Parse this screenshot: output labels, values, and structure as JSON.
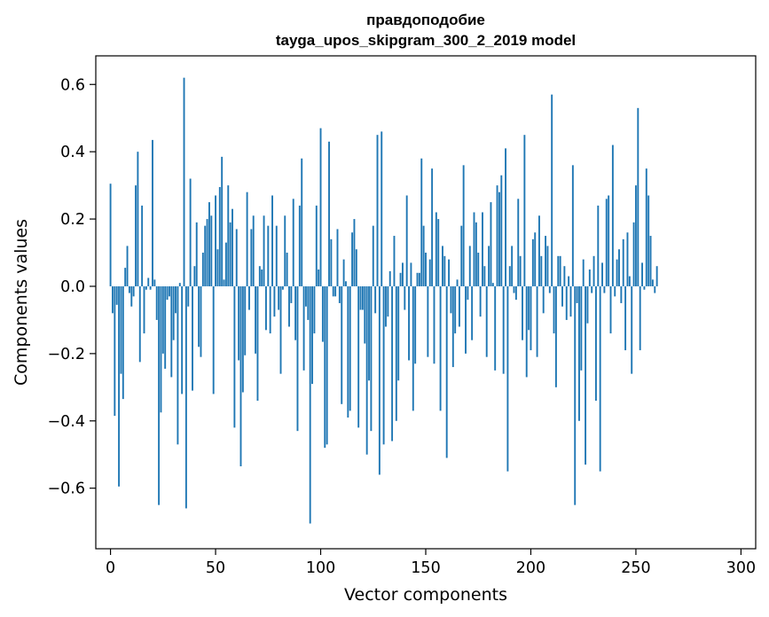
{
  "chart_data": {
    "type": "bar",
    "title": "правдоподобие",
    "subtitle": "tayga_upos_skipgram_300_2_2019 model",
    "xlabel": "Vector components",
    "ylabel": "Components values",
    "xlim": [
      -7,
      307
    ],
    "ylim": [
      -0.78,
      0.685
    ],
    "xticks": [
      0,
      50,
      100,
      150,
      200,
      250,
      300
    ],
    "xtick_labels": [
      "0",
      "50",
      "100",
      "150",
      "200",
      "250",
      "300"
    ],
    "yticks": [
      0.6,
      0.4,
      0.2,
      0.0,
      -0.2,
      -0.4,
      -0.6
    ],
    "ytick_labels": [
      "0.6",
      "0.4",
      "0.2",
      "0.0",
      "−0.2",
      "−0.4",
      "−0.6"
    ],
    "grid": false,
    "bar_color": "#1f77b4",
    "x_start": 0,
    "values": [
      0.305,
      -0.08,
      -0.385,
      -0.055,
      -0.595,
      -0.26,
      -0.335,
      0.055,
      0.12,
      -0.02,
      -0.06,
      -0.03,
      0.3,
      0.4,
      -0.225,
      0.24,
      -0.14,
      -0.01,
      0.025,
      -0.01,
      0.435,
      0.02,
      -0.1,
      -0.65,
      -0.375,
      -0.2,
      -0.245,
      -0.04,
      -0.03,
      -0.27,
      -0.16,
      -0.08,
      -0.47,
      0.01,
      -0.32,
      0.62,
      -0.66,
      -0.06,
      0.32,
      -0.31,
      0.06,
      0.19,
      -0.18,
      -0.21,
      0.1,
      0.18,
      0.2,
      0.25,
      0.21,
      -0.32,
      0.27,
      0.11,
      0.295,
      0.385,
      0.02,
      0.13,
      0.3,
      0.19,
      0.23,
      -0.42,
      0.17,
      -0.22,
      -0.535,
      -0.315,
      -0.205,
      0.28,
      -0.07,
      0.17,
      0.21,
      -0.2,
      -0.34,
      0.06,
      0.05,
      0.21,
      -0.13,
      0.18,
      -0.14,
      0.27,
      -0.09,
      0.18,
      -0.07,
      -0.26,
      -0.01,
      0.21,
      0.1,
      -0.12,
      -0.05,
      0.26,
      -0.16,
      -0.43,
      0.24,
      0.38,
      -0.25,
      -0.06,
      -0.1,
      -0.705,
      -0.29,
      -0.14,
      0.24,
      0.05,
      0.47,
      -0.165,
      -0.48,
      -0.47,
      0.43,
      0.14,
      -0.03,
      -0.03,
      0.17,
      -0.05,
      -0.35,
      0.08,
      0.015,
      -0.39,
      -0.37,
      0.16,
      0.2,
      0.11,
      -0.42,
      -0.07,
      -0.07,
      -0.17,
      -0.5,
      -0.28,
      -0.43,
      0.18,
      -0.08,
      0.45,
      -0.56,
      0.46,
      -0.47,
      -0.12,
      -0.09,
      0.045,
      -0.46,
      0.15,
      -0.4,
      -0.28,
      0.04,
      0.07,
      -0.07,
      0.27,
      -0.22,
      0.07,
      -0.37,
      -0.23,
      0.04,
      0.04,
      0.38,
      0.18,
      0.1,
      -0.21,
      0.08,
      0.35,
      -0.23,
      0.22,
      0.2,
      -0.37,
      0.12,
      0.09,
      -0.51,
      0.08,
      -0.08,
      -0.24,
      -0.14,
      0.02,
      -0.12,
      0.18,
      0.36,
      -0.2,
      -0.04,
      0.12,
      -0.16,
      0.22,
      0.19,
      0.1,
      -0.09,
      0.22,
      0.06,
      -0.21,
      0.12,
      0.25,
      0.01,
      -0.25,
      0.3,
      0.28,
      0.33,
      -0.26,
      0.41,
      -0.55,
      0.06,
      0.12,
      -0.02,
      -0.04,
      0.26,
      0.09,
      -0.16,
      0.45,
      -0.27,
      -0.13,
      -0.19,
      0.14,
      0.16,
      -0.21,
      0.21,
      0.09,
      -0.08,
      0.15,
      0.12,
      -0.02,
      0.57,
      -0.14,
      -0.3,
      0.09,
      0.09,
      -0.06,
      0.06,
      -0.1,
      0.03,
      -0.09,
      0.36,
      -0.65,
      -0.05,
      -0.4,
      -0.25,
      0.08,
      -0.53,
      -0.11,
      0.05,
      -0.02,
      0.09,
      -0.34,
      0.24,
      -0.55,
      0.07,
      -0.02,
      0.26,
      0.27,
      -0.14,
      0.42,
      -0.03,
      0.08,
      0.11,
      -0.05,
      0.14,
      -0.19,
      0.16,
      0.03,
      -0.26,
      0.19,
      0.3,
      0.53,
      -0.19,
      0.07,
      -0.01,
      0.35,
      0.27,
      0.15,
      0.02,
      -0.02,
      0.06
    ]
  }
}
